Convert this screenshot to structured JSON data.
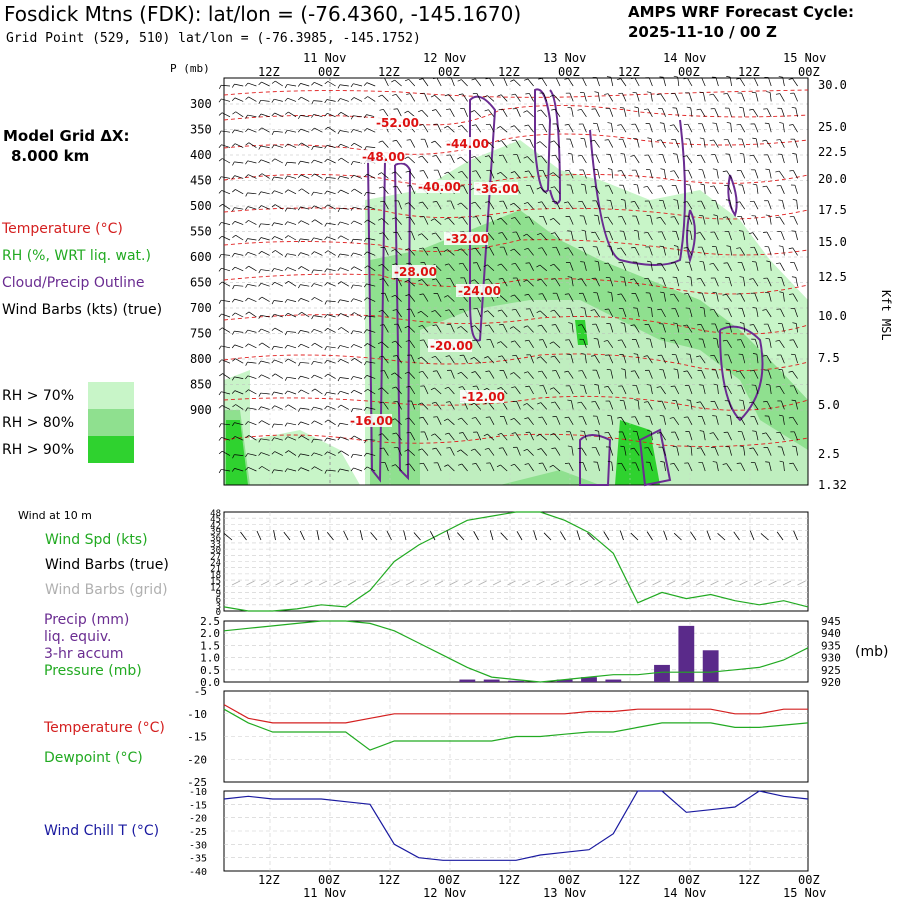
{
  "header": {
    "title": "Fosdick Mtns (FDK):  lat/lon = (-76.4360, -145.1670)",
    "subtitle": "Grid Point (529, 510) lat/lon = (-76.3985, -145.1752)",
    "cycle_line1": "AMPS WRF Forecast Cycle:",
    "cycle_line2": "2025-11-10 / 00  Z"
  },
  "left_panel": {
    "grid_label": "Model Grid ΔX:",
    "grid_value": "8.000 km",
    "legend": [
      {
        "text": "Temperature (°C)",
        "color": "#d42020"
      },
      {
        "text": "RH (%, WRT liq. wat.)",
        "color": "#22aa22"
      },
      {
        "text": "Cloud/Precip Outline",
        "color": "#6a2c91"
      },
      {
        "text": "Wind Barbs (kts) (true)",
        "color": "#000000"
      }
    ],
    "rh_legend": [
      {
        "text": "RH > 70%",
        "color": "#c8f5c8"
      },
      {
        "text": "RH > 80%",
        "color": "#8fe08f"
      },
      {
        "text": "RH > 90%",
        "color": "#2fd22f"
      }
    ]
  },
  "time_axis": {
    "top_hours": [
      "12Z",
      "00Z",
      "12Z",
      "00Z",
      "12Z",
      "00Z",
      "12Z",
      "00Z",
      "12Z",
      "00Z"
    ],
    "dates": [
      "11 Nov",
      "12 Nov",
      "13 Nov",
      "14 Nov",
      "15 Nov"
    ],
    "bottom_hours": [
      "12Z",
      "00Z",
      "12Z",
      "00Z",
      "12Z",
      "00Z",
      "12Z",
      "00Z",
      "12Z",
      "00Z"
    ]
  },
  "panels": {
    "wind_label_small": "Wind at 10 m",
    "wind_labels": [
      {
        "text": "Wind Spd (kts)",
        "color": "#22aa22"
      },
      {
        "text": "Wind Barbs (true)",
        "color": "#000000"
      },
      {
        "text": "Wind Barbs (grid)",
        "color": "#b0b0b0"
      }
    ],
    "precip_labels": [
      {
        "text": "Precip (mm)",
        "color": "#6a2c91"
      },
      {
        "text": "liq. equiv.",
        "color": "#6a2c91"
      },
      {
        "text": "3-hr accum",
        "color": "#6a2c91"
      },
      {
        "text": "Pressure (mb)",
        "color": "#22aa22"
      }
    ],
    "precip_unit": "(mb)",
    "temp_labels": [
      {
        "text": "Temperature (°C)",
        "color": "#d42020"
      },
      {
        "text": "Dewpoint (°C)",
        "color": "#22aa22"
      }
    ],
    "chill_label": {
      "text": "Wind Chill T (°C)",
      "color": "#1a1aa0"
    }
  },
  "chart_data": [
    {
      "type": "heatmap",
      "yaxis_title": "P (mb)",
      "y_ticks_left": [
        "300",
        "350",
        "400",
        "450",
        "500",
        "550",
        "600",
        "650",
        "700",
        "750",
        "800",
        "850",
        "900"
      ],
      "y_ticks_right": [
        "30.0",
        "25.0",
        "22.5",
        "20.0",
        "17.5",
        "15.0",
        "12.5",
        "10.0",
        "7.5",
        "5.0",
        "2.5",
        "1.32"
      ],
      "y_right_title": "Kft MSL",
      "temperature_labels": [
        "-52.00",
        "-48.00",
        "-44.00",
        "-40.00",
        "-36.00",
        "-32.00",
        "-28.00",
        "-24.00",
        "-20.00",
        "-12.00",
        "-16.00"
      ]
    },
    {
      "type": "line",
      "title": "Wind at 10 m",
      "y_ticks": [
        "48",
        "45",
        "42",
        "39",
        "36",
        "33",
        "30",
        "27",
        "24",
        "21",
        "18",
        "15",
        "12",
        "9",
        "6",
        "3",
        "0"
      ],
      "ylim": [
        0,
        48
      ],
      "series": [
        {
          "name": "Wind Spd (kts)",
          "color": "#22aa22",
          "values": [
            2,
            0,
            0,
            1,
            3,
            2,
            10,
            24,
            32,
            38,
            44,
            46,
            48,
            48,
            44,
            38,
            28,
            4,
            9,
            6,
            8,
            5,
            3,
            5,
            2
          ]
        }
      ]
    },
    {
      "type": "bar",
      "y_ticks_left": [
        "2.5",
        "2.0",
        "1.5",
        "1.0",
        "0.5",
        "0.0"
      ],
      "y_ticks_right": [
        "945",
        "940",
        "935",
        "930",
        "925",
        "920"
      ],
      "ylim": [
        0,
        2.5
      ],
      "precip_values": [
        0,
        0,
        0,
        0,
        0,
        0,
        0,
        0,
        0,
        0,
        0.1,
        0.1,
        0.05,
        0,
        0.1,
        0.2,
        0.1,
        0,
        0.7,
        2.3,
        1.3,
        0,
        0,
        0,
        0
      ],
      "pressure_values": [
        941,
        942,
        943,
        944,
        945,
        945,
        944,
        941,
        936,
        931,
        926,
        922,
        921,
        920,
        921,
        922,
        923,
        923,
        924,
        924,
        924,
        925,
        926,
        929,
        934
      ]
    },
    {
      "type": "line",
      "y_ticks": [
        "-5",
        "-10",
        "-15",
        "-20",
        "-25"
      ],
      "ylim": [
        -25,
        -5
      ],
      "series": [
        {
          "name": "Temperature (°C)",
          "color": "#d42020",
          "values": [
            -8,
            -11,
            -12,
            -12,
            -12,
            -12,
            -11,
            -10,
            -10,
            -10,
            -10,
            -10,
            -10,
            -10,
            -10,
            -9.5,
            -9.5,
            -9,
            -9,
            -9,
            -9,
            -10,
            -10,
            -9,
            -9
          ]
        },
        {
          "name": "Dewpoint (°C)",
          "color": "#22aa22",
          "values": [
            -9,
            -12,
            -14,
            -14,
            -14,
            -14,
            -18,
            -16,
            -16,
            -16,
            -16,
            -16,
            -15,
            -15,
            -14.5,
            -14,
            -14,
            -13,
            -12,
            -12,
            -12,
            -13,
            -13,
            -12.5,
            -12
          ]
        }
      ]
    },
    {
      "type": "line",
      "y_ticks": [
        "-10",
        "-15",
        "-20",
        "-25",
        "-30",
        "-35",
        "-40"
      ],
      "ylim": [
        -40,
        -10
      ],
      "series": [
        {
          "name": "Wind Chill T (°C)",
          "color": "#1a1aa0",
          "values": [
            -13,
            -12,
            -13,
            -13,
            -13,
            -14,
            -15,
            -30,
            -35,
            -36,
            -36,
            -36,
            -36,
            -34,
            -33,
            -32,
            -26,
            -10,
            -10,
            -18,
            -17,
            -16,
            -10,
            -12,
            -13
          ]
        }
      ]
    }
  ]
}
